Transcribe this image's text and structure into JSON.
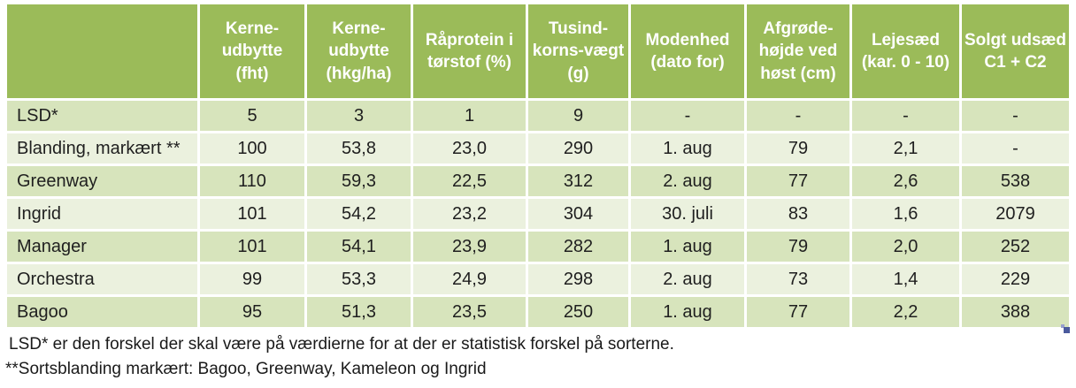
{
  "colors": {
    "header_bg": "#9bbb59",
    "row_band_dark": "#d7e4bc",
    "row_band_light": "#ebf1de",
    "header_text": "#ffffff",
    "body_text": "#1f1f1f",
    "corner_handle_dark": "#4a5a9d",
    "corner_handle_light": "#97a0cd"
  },
  "table": {
    "headers": [
      "",
      "Kerne-\nudbytte\n(fht)",
      "Kerne-\nudbytte\n(hkg/ha)",
      "Råprotein i\ntørstof (%)",
      "Tusind-\nkorns-vægt\n(g)",
      "Modenhed\n(dato for)",
      "Afgrøde-\nhøjde ved\nhøst (cm)",
      "Lejesæd\n(kar. 0 - 10)",
      "Solgt udsæd\nC1 + C2"
    ],
    "rows": [
      {
        "cells": [
          "LSD*",
          "5",
          "3",
          "1",
          "9",
          "-",
          "-",
          "-",
          "-"
        ]
      },
      {
        "cells": [
          "Blanding, markært **",
          "100",
          "53,8",
          "23,0",
          "290",
          "1. aug",
          "79",
          "2,1",
          "-"
        ]
      },
      {
        "cells": [
          "Greenway",
          "110",
          "59,3",
          "22,5",
          "312",
          "2. aug",
          "77",
          "2,6",
          "538"
        ]
      },
      {
        "cells": [
          "Ingrid",
          "101",
          "54,2",
          "23,2",
          "304",
          "30. juli",
          "83",
          "1,6",
          "2079"
        ]
      },
      {
        "cells": [
          "Manager",
          "101",
          "54,1",
          "23,9",
          "282",
          "1. aug",
          "79",
          "2,0",
          "252"
        ]
      },
      {
        "cells": [
          "Orchestra",
          "99",
          "53,3",
          "24,9",
          "298",
          "2. aug",
          "73",
          "1,4",
          "229"
        ]
      },
      {
        "cells": [
          "Bagoo",
          "95",
          "51,3",
          "23,5",
          "250",
          "1. aug",
          "77",
          "2,2",
          "388"
        ]
      }
    ]
  },
  "footnotes": [
    "LSD* er den forskel der skal være på værdierne for at der er statistisk forskel på sorterne.",
    "**Sortsblanding markært: Bagoo, Greenway, Kameleon og Ingrid"
  ]
}
